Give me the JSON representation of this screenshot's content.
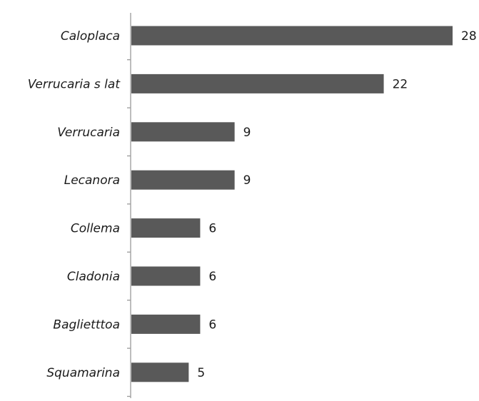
{
  "chart_data": {
    "type": "bar",
    "orientation": "horizontal",
    "categories": [
      "Caloplaca",
      "Verrucaria s lat",
      "Verrucaria",
      "Lecanora",
      "Collema",
      "Cladonia",
      "Baglietttoa",
      "Squamarina"
    ],
    "values": [
      28,
      22,
      9,
      9,
      6,
      6,
      6,
      5
    ],
    "title": "",
    "xlabel": "",
    "ylabel": "",
    "xlim": [
      0,
      28
    ],
    "grid": false,
    "legend": "none",
    "bar_color": "#595959",
    "data_labels": true
  }
}
